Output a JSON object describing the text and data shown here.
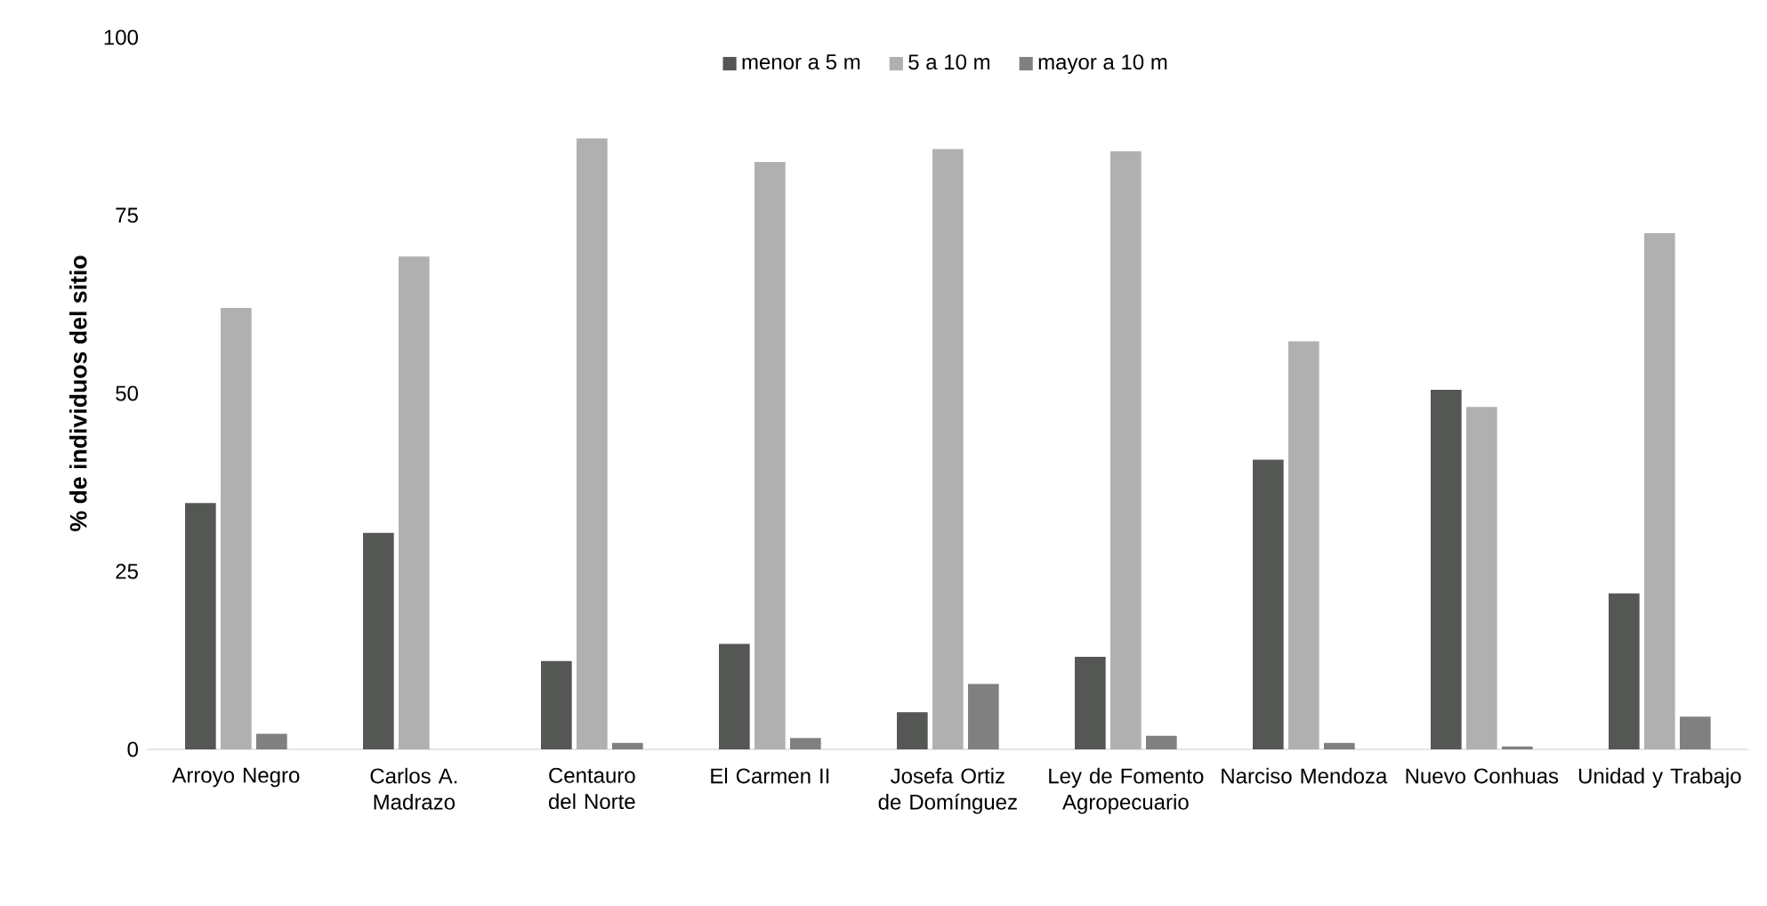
{
  "chart_data": {
    "type": "bar",
    "ylabel": "% de individuos del sitio",
    "categories": [
      "Arroyo Negro",
      "Carlos A. Madrazo",
      "Centauro del Norte",
      "El Carmen II",
      "Josefa Ortiz de Domínguez",
      "Ley de Fomento Agropecuario",
      "Narciso Mendoza",
      "Nuevo Conhuas",
      "Unidad y Trabajo"
    ],
    "series": [
      {
        "name": "menor a 5 m",
        "color": "#555755",
        "values": [
          34.6,
          30.4,
          12.4,
          14.8,
          5.2,
          13.0,
          40.7,
          50.5,
          21.9
        ]
      },
      {
        "name": "5 a 10 m",
        "color": "#b0b0b0",
        "values": [
          62.0,
          69.2,
          85.8,
          82.5,
          84.3,
          84.0,
          57.3,
          48.1,
          72.5
        ]
      },
      {
        "name": "mayor a 10 m",
        "color": "#808080",
        "values": [
          2.2,
          0,
          0.9,
          1.6,
          9.2,
          1.9,
          0.9,
          0.4,
          4.6
        ]
      }
    ],
    "ylim": [
      0,
      100
    ],
    "yticks": [
      0,
      25,
      50,
      75,
      100
    ],
    "legend": "top"
  }
}
